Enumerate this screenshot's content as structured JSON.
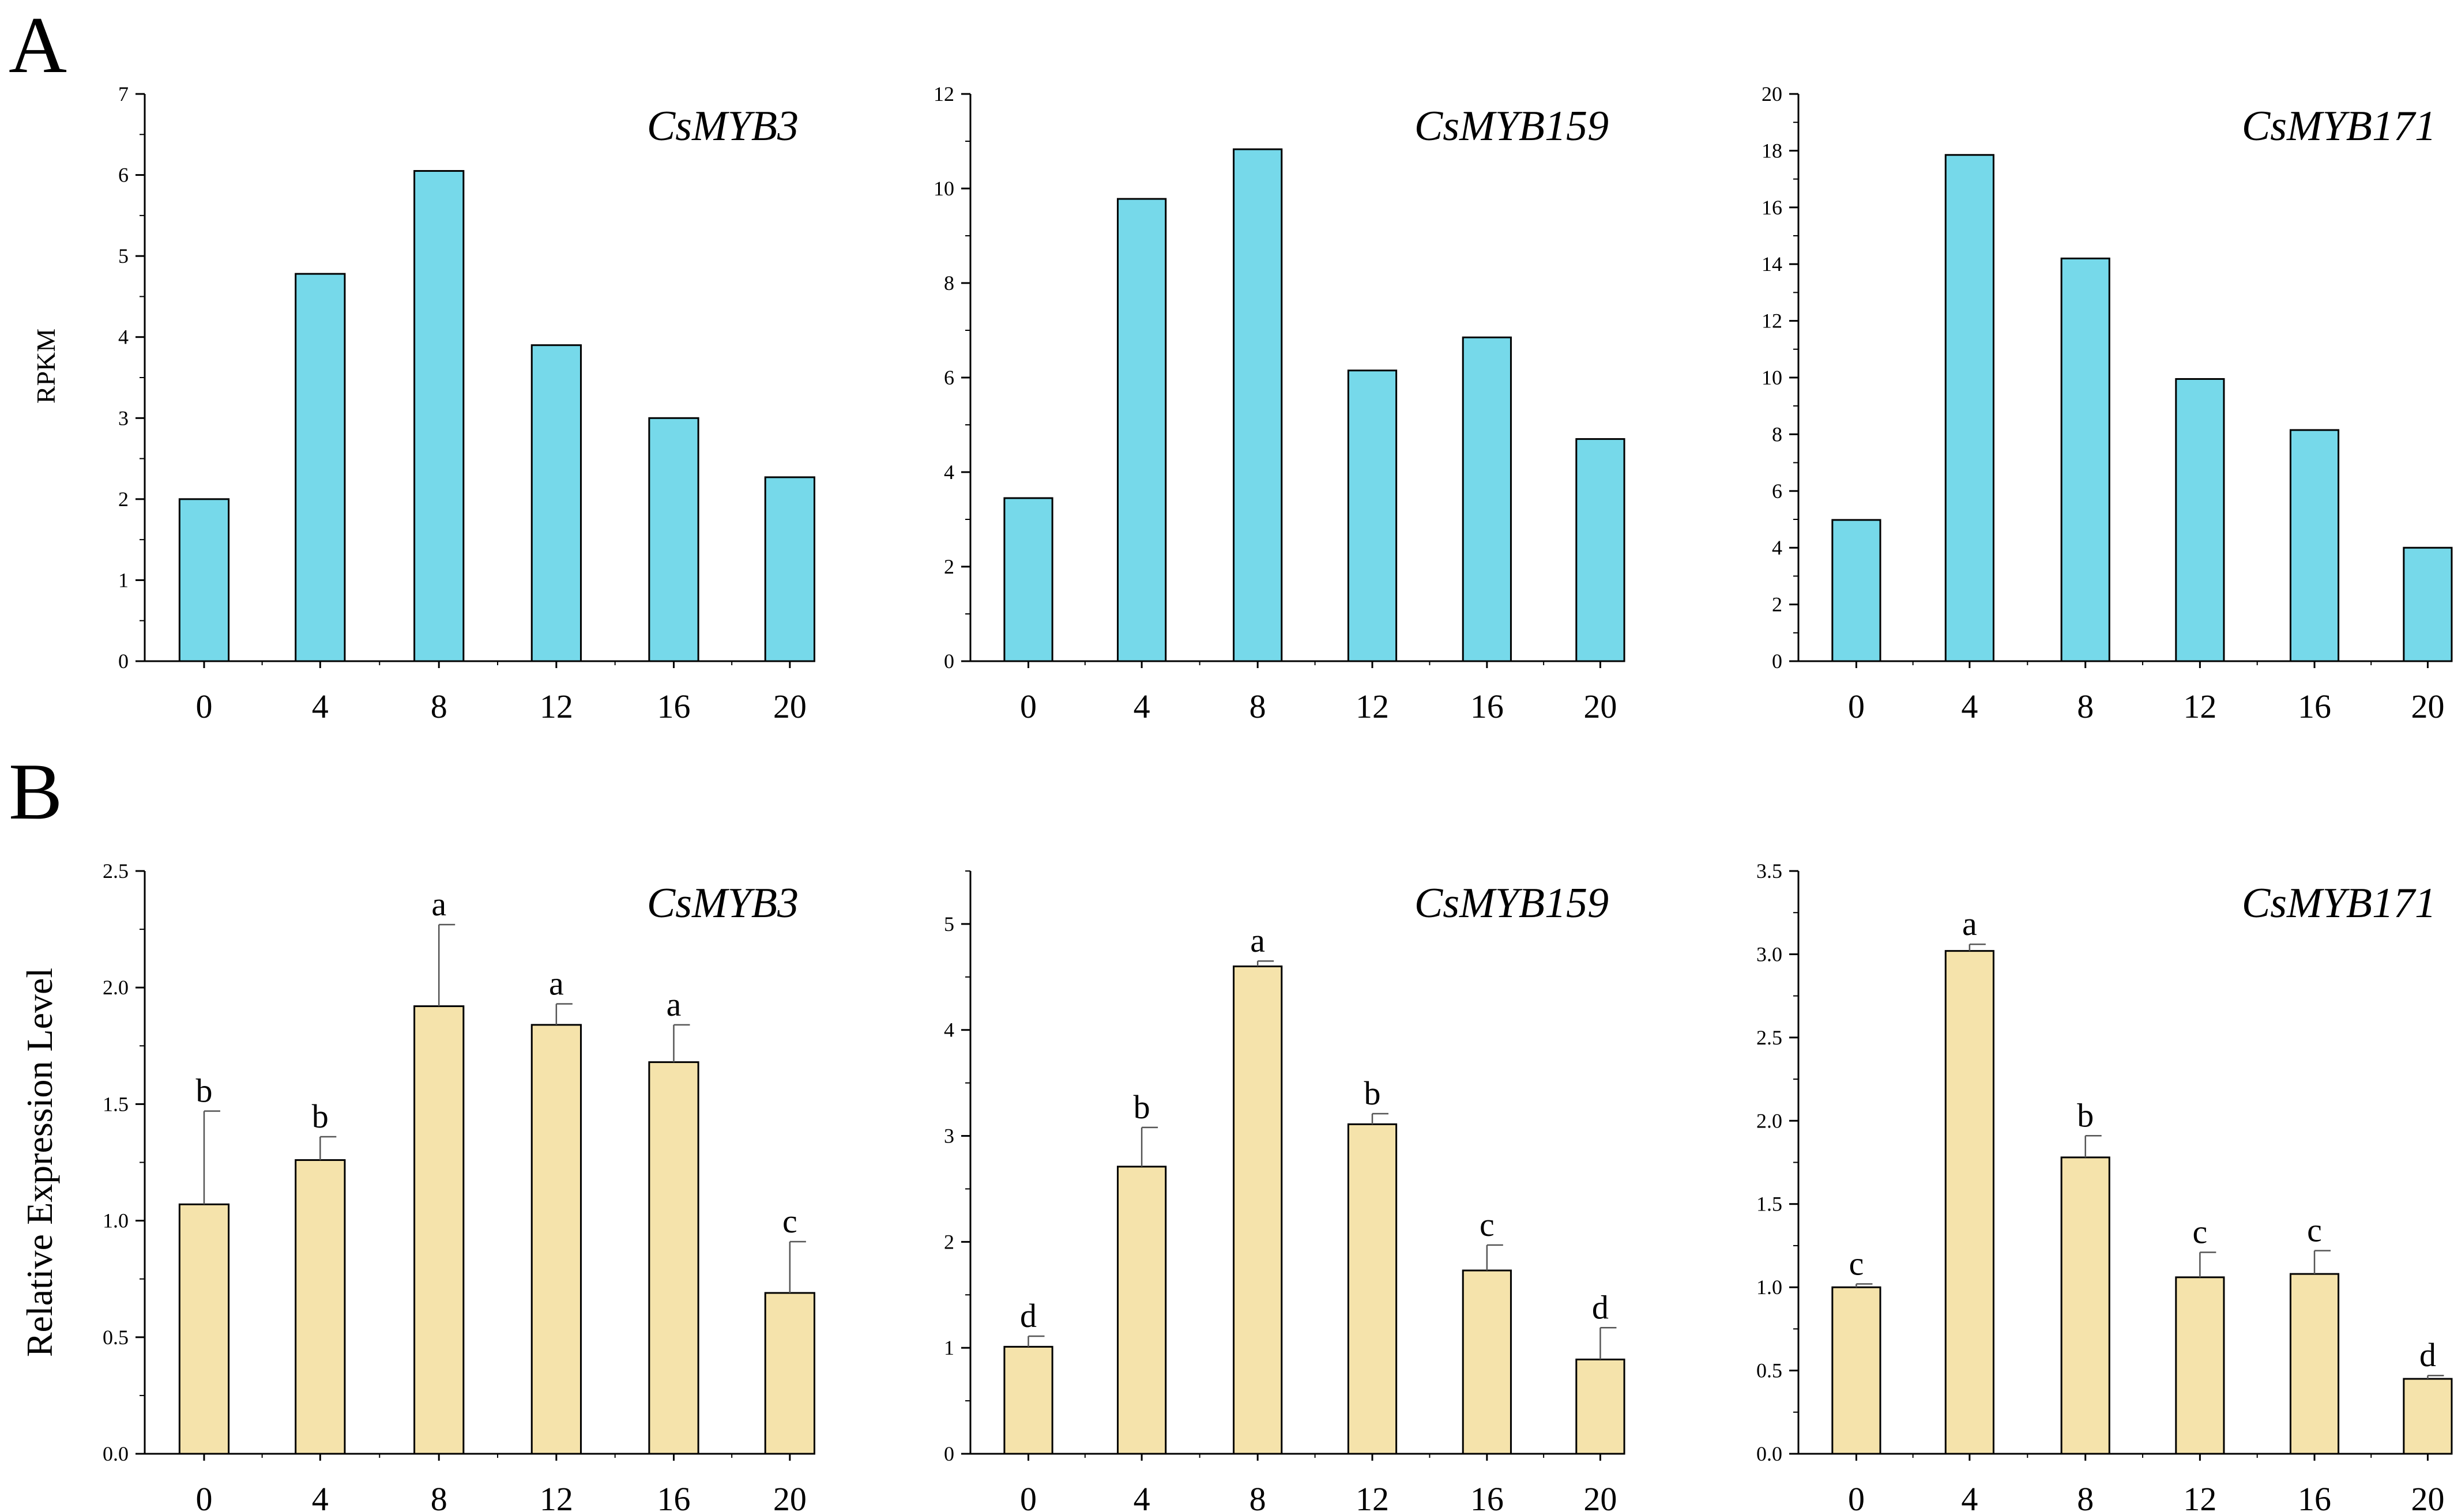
{
  "panels": [
    {
      "letter": "A"
    },
    {
      "letter": "B"
    }
  ],
  "chart_data": [
    {
      "type": "bar",
      "panel": "A",
      "title": "CsMYB3",
      "ylabel": "RPKM",
      "categories": [
        "0",
        "4",
        "8",
        "12",
        "16",
        "20"
      ],
      "values": [
        2.0,
        4.78,
        6.05,
        3.9,
        3.0,
        2.27
      ],
      "ylim": [
        0,
        7
      ],
      "yticks": [
        0,
        1,
        2,
        3,
        4,
        5,
        6,
        7
      ],
      "bar_color": "#76d9ea"
    },
    {
      "type": "bar",
      "panel": "A",
      "title": "CsMYB159",
      "ylabel": "",
      "categories": [
        "0",
        "4",
        "8",
        "12",
        "16",
        "20"
      ],
      "values": [
        3.45,
        9.78,
        10.83,
        6.15,
        6.85,
        4.7
      ],
      "ylim": [
        0,
        12
      ],
      "yticks": [
        0,
        2,
        4,
        6,
        8,
        10,
        12
      ],
      "bar_color": "#76d9ea"
    },
    {
      "type": "bar",
      "panel": "A",
      "title": "CsMYB171",
      "ylabel": "",
      "categories": [
        "0",
        "4",
        "8",
        "12",
        "16",
        "20"
      ],
      "values": [
        4.98,
        17.85,
        14.2,
        9.95,
        8.15,
        4.0
      ],
      "ylim": [
        0,
        20
      ],
      "yticks": [
        0,
        2,
        4,
        6,
        8,
        10,
        12,
        14,
        16,
        18,
        20
      ],
      "bar_color": "#76d9ea"
    },
    {
      "type": "bar",
      "panel": "B",
      "title": "CsMYB3",
      "ylabel": "Relative Expression Level",
      "categories": [
        "0",
        "4",
        "8",
        "12",
        "16",
        "20"
      ],
      "values": [
        1.07,
        1.26,
        1.92,
        1.84,
        1.68,
        0.69
      ],
      "errors": [
        0.4,
        0.1,
        0.35,
        0.09,
        0.16,
        0.22
      ],
      "letters": [
        "b",
        "b",
        "a",
        "a",
        "a",
        "c"
      ],
      "ylim": [
        0,
        2.5
      ],
      "yticks": [
        "0.0",
        "0.5",
        "1.0",
        "1.5",
        "2.0",
        "2.5"
      ],
      "bar_color": "#f5e3ab"
    },
    {
      "type": "bar",
      "panel": "B",
      "title": "CsMYB159",
      "ylabel": "",
      "categories": [
        "0",
        "4",
        "8",
        "12",
        "16",
        "20"
      ],
      "values": [
        1.01,
        2.71,
        4.6,
        3.11,
        1.73,
        0.89
      ],
      "errors": [
        0.1,
        0.37,
        0.05,
        0.1,
        0.24,
        0.3
      ],
      "letters": [
        "d",
        "b",
        "a",
        "b",
        "c",
        "d"
      ],
      "ylim": [
        0,
        5.5
      ],
      "yticks": [
        "0",
        "1",
        "2",
        "3",
        "4",
        "5"
      ],
      "bar_color": "#f5e3ab"
    },
    {
      "type": "bar",
      "panel": "B",
      "title": "CsMYB171",
      "ylabel": "",
      "categories": [
        "0",
        "4",
        "8",
        "12",
        "16",
        "20"
      ],
      "values": [
        1.0,
        3.02,
        1.78,
        1.06,
        1.08,
        0.45
      ],
      "errors": [
        0.02,
        0.04,
        0.13,
        0.15,
        0.14,
        0.02
      ],
      "letters": [
        "c",
        "a",
        "b",
        "c",
        "c",
        "d"
      ],
      "ylim": [
        0,
        3.5
      ],
      "yticks": [
        "0.0",
        "0.5",
        "1.0",
        "1.5",
        "2.0",
        "2.5",
        "3.0",
        "3.5"
      ],
      "bar_color": "#f5e3ab"
    }
  ]
}
